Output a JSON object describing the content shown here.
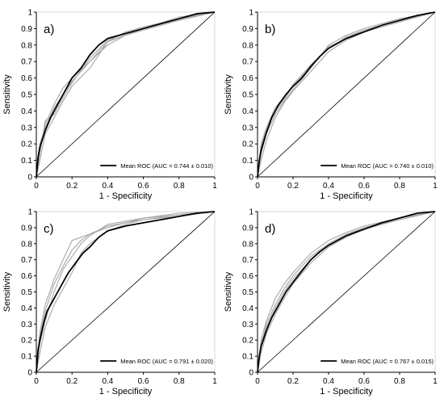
{
  "figure": {
    "axis_color": "#000000",
    "reference_color": "#000000",
    "mean_color": "#000000",
    "fold_color": "#a6a6a6"
  },
  "chart_data": [
    {
      "type": "line",
      "panel_label": "a)",
      "xlabel": "1 - Specificity",
      "ylabel": "Sensitivity",
      "xlim": [
        0,
        1
      ],
      "ylim": [
        0,
        1
      ],
      "xticks": [
        "0",
        "0.2",
        "0.4",
        "0.6",
        "0.8",
        "1"
      ],
      "yticks": [
        "0",
        "0.1",
        "0.2",
        "0.3",
        "0.4",
        "0.5",
        "0.6",
        "0.7",
        "0.8",
        "0.9",
        "1"
      ],
      "legend": {
        "label": "Mean ROC (AUC = 0.744 ± 0.010)",
        "position": "bottom-right"
      },
      "series": [
        {
          "name": "Mean ROC",
          "role": "mean",
          "x": [
            0,
            0.01,
            0.02,
            0.05,
            0.08,
            0.12,
            0.16,
            0.2,
            0.25,
            0.3,
            0.35,
            0.4,
            0.5,
            0.6,
            0.7,
            0.8,
            0.9,
            1
          ],
          "y": [
            0,
            0.12,
            0.18,
            0.28,
            0.36,
            0.44,
            0.52,
            0.6,
            0.66,
            0.74,
            0.8,
            0.84,
            0.87,
            0.9,
            0.93,
            0.96,
            0.99,
            1
          ]
        },
        {
          "role": "fold",
          "x": [
            0,
            0.02,
            0.05,
            0.1,
            0.15,
            0.2,
            0.3,
            0.4,
            0.5,
            0.6,
            0.8,
            1
          ],
          "y": [
            0,
            0.2,
            0.3,
            0.42,
            0.5,
            0.58,
            0.7,
            0.82,
            0.88,
            0.91,
            0.96,
            1
          ]
        },
        {
          "role": "fold",
          "x": [
            0,
            0.02,
            0.05,
            0.1,
            0.15,
            0.2,
            0.3,
            0.4,
            0.5,
            0.6,
            0.8,
            1
          ],
          "y": [
            0,
            0.16,
            0.32,
            0.44,
            0.54,
            0.6,
            0.7,
            0.8,
            0.86,
            0.9,
            0.96,
            1
          ]
        },
        {
          "role": "fold",
          "x": [
            0,
            0.02,
            0.05,
            0.1,
            0.15,
            0.2,
            0.3,
            0.4,
            0.5,
            0.6,
            0.8,
            1
          ],
          "y": [
            0,
            0.1,
            0.26,
            0.36,
            0.46,
            0.55,
            0.66,
            0.82,
            0.86,
            0.89,
            0.95,
            1
          ]
        },
        {
          "role": "fold",
          "x": [
            0,
            0.02,
            0.05,
            0.1,
            0.15,
            0.2,
            0.3,
            0.4,
            0.5,
            0.6,
            0.8,
            1
          ],
          "y": [
            0,
            0.14,
            0.34,
            0.38,
            0.48,
            0.57,
            0.72,
            0.83,
            0.87,
            0.9,
            0.97,
            1
          ]
        }
      ]
    },
    {
      "type": "line",
      "panel_label": "b)",
      "xlabel": "1 - Specificity",
      "ylabel": "Sensitivity",
      "xlim": [
        0,
        1
      ],
      "ylim": [
        0,
        1
      ],
      "xticks": [
        "0",
        "0.2",
        "0.4",
        "0.6",
        "0.8",
        "1"
      ],
      "yticks": [
        "0",
        "0.1",
        "0.2",
        "0.3",
        "0.4",
        "0.5",
        "0.6",
        "0.7",
        "0.8",
        "0.9",
        "1"
      ],
      "legend": {
        "label": "Mean ROC (AUC = 0.740 ± 0.010)",
        "position": "bottom-right"
      },
      "series": [
        {
          "name": "Mean ROC",
          "role": "mean",
          "x": [
            0,
            0.01,
            0.02,
            0.05,
            0.08,
            0.12,
            0.16,
            0.2,
            0.25,
            0.3,
            0.35,
            0.4,
            0.5,
            0.6,
            0.7,
            0.8,
            0.9,
            1
          ],
          "y": [
            0,
            0.1,
            0.16,
            0.27,
            0.36,
            0.44,
            0.5,
            0.55,
            0.6,
            0.67,
            0.73,
            0.78,
            0.84,
            0.88,
            0.92,
            0.95,
            0.98,
            1
          ]
        },
        {
          "role": "fold",
          "x": [
            0,
            0.02,
            0.05,
            0.1,
            0.15,
            0.2,
            0.3,
            0.4,
            0.5,
            0.6,
            0.8,
            1
          ],
          "y": [
            0,
            0.2,
            0.3,
            0.42,
            0.48,
            0.56,
            0.68,
            0.78,
            0.85,
            0.89,
            0.95,
            1
          ]
        },
        {
          "role": "fold",
          "x": [
            0,
            0.02,
            0.05,
            0.1,
            0.15,
            0.2,
            0.3,
            0.4,
            0.5,
            0.6,
            0.8,
            1
          ],
          "y": [
            0,
            0.14,
            0.26,
            0.38,
            0.46,
            0.53,
            0.66,
            0.8,
            0.86,
            0.9,
            0.96,
            1
          ]
        },
        {
          "role": "fold",
          "x": [
            0,
            0.02,
            0.05,
            0.1,
            0.15,
            0.2,
            0.3,
            0.4,
            0.5,
            0.6,
            0.8,
            1
          ],
          "y": [
            0,
            0.1,
            0.22,
            0.36,
            0.45,
            0.52,
            0.64,
            0.76,
            0.83,
            0.88,
            0.94,
            1
          ]
        },
        {
          "role": "fold",
          "x": [
            0,
            0.02,
            0.05,
            0.1,
            0.15,
            0.2,
            0.3,
            0.4,
            0.5,
            0.6,
            0.8,
            1
          ],
          "y": [
            0,
            0.18,
            0.28,
            0.4,
            0.47,
            0.55,
            0.67,
            0.79,
            0.84,
            0.89,
            0.95,
            1
          ]
        }
      ]
    },
    {
      "type": "line",
      "panel_label": "c)",
      "xlabel": "1 - Specificity",
      "ylabel": "Sensitivity",
      "xlim": [
        0,
        1
      ],
      "ylim": [
        0,
        1
      ],
      "xticks": [
        "0",
        "0.2",
        "0.4",
        "0.6",
        "0.8",
        "1"
      ],
      "yticks": [
        "0",
        "0.1",
        "0.2",
        "0.3",
        "0.4",
        "0.5",
        "0.6",
        "0.7",
        "0.8",
        "0.9",
        "1"
      ],
      "legend": {
        "label": "Mean ROC (AUC = 0.791 ± 0.020)",
        "position": "bottom-right"
      },
      "series": [
        {
          "name": "Mean ROC",
          "role": "mean",
          "x": [
            0,
            0.01,
            0.02,
            0.04,
            0.06,
            0.1,
            0.14,
            0.18,
            0.22,
            0.26,
            0.3,
            0.35,
            0.4,
            0.5,
            0.6,
            0.7,
            0.8,
            0.9,
            1
          ],
          "y": [
            0,
            0.14,
            0.2,
            0.3,
            0.38,
            0.46,
            0.54,
            0.62,
            0.68,
            0.74,
            0.78,
            0.84,
            0.88,
            0.91,
            0.93,
            0.95,
            0.97,
            0.99,
            1
          ]
        },
        {
          "role": "fold",
          "x": [
            0,
            0.02,
            0.05,
            0.1,
            0.15,
            0.2,
            0.25,
            0.3,
            0.4,
            0.5,
            0.6,
            0.8,
            1
          ],
          "y": [
            0,
            0.25,
            0.42,
            0.58,
            0.7,
            0.82,
            0.84,
            0.86,
            0.9,
            0.93,
            0.95,
            0.97,
            1
          ]
        },
        {
          "role": "fold",
          "x": [
            0,
            0.02,
            0.05,
            0.1,
            0.15,
            0.2,
            0.25,
            0.3,
            0.4,
            0.5,
            0.6,
            0.8,
            1
          ],
          "y": [
            0,
            0.18,
            0.32,
            0.5,
            0.64,
            0.72,
            0.8,
            0.85,
            0.92,
            0.94,
            0.96,
            0.99,
            1
          ]
        },
        {
          "role": "fold",
          "x": [
            0,
            0.02,
            0.05,
            0.1,
            0.15,
            0.2,
            0.25,
            0.3,
            0.4,
            0.5,
            0.6,
            0.8,
            1
          ],
          "y": [
            0,
            0.12,
            0.28,
            0.42,
            0.52,
            0.62,
            0.74,
            0.8,
            0.88,
            0.92,
            0.95,
            0.98,
            1
          ]
        },
        {
          "role": "fold",
          "x": [
            0,
            0.02,
            0.05,
            0.1,
            0.15,
            0.2,
            0.25,
            0.3,
            0.4,
            0.5,
            0.6,
            0.8,
            1
          ],
          "y": [
            0,
            0.22,
            0.38,
            0.55,
            0.66,
            0.76,
            0.82,
            0.86,
            0.91,
            0.93,
            0.96,
            0.98,
            1
          ]
        }
      ]
    },
    {
      "type": "line",
      "panel_label": "d)",
      "xlabel": "1 - Specificity",
      "ylabel": "Sensitivity",
      "xlim": [
        0,
        1
      ],
      "ylim": [
        0,
        1
      ],
      "xticks": [
        "0",
        "0.2",
        "0.4",
        "0.6",
        "0.8",
        "1"
      ],
      "yticks": [
        "0",
        "0.1",
        "0.2",
        "0.3",
        "0.4",
        "0.5",
        "0.6",
        "0.7",
        "0.8",
        "0.9",
        "1"
      ],
      "legend": {
        "label": "Mean ROC (AUC = 0.767 ± 0.015)",
        "position": "bottom-right"
      },
      "series": [
        {
          "name": "Mean ROC",
          "role": "mean",
          "x": [
            0,
            0.01,
            0.02,
            0.05,
            0.08,
            0.12,
            0.16,
            0.2,
            0.25,
            0.3,
            0.35,
            0.4,
            0.45,
            0.5,
            0.6,
            0.7,
            0.8,
            0.9,
            1
          ],
          "y": [
            0,
            0.1,
            0.16,
            0.26,
            0.34,
            0.42,
            0.5,
            0.56,
            0.63,
            0.7,
            0.75,
            0.79,
            0.82,
            0.85,
            0.89,
            0.93,
            0.96,
            0.99,
            1
          ]
        },
        {
          "role": "fold",
          "x": [
            0,
            0.02,
            0.05,
            0.1,
            0.15,
            0.2,
            0.3,
            0.4,
            0.5,
            0.6,
            0.8,
            1
          ],
          "y": [
            0,
            0.2,
            0.32,
            0.46,
            0.55,
            0.62,
            0.74,
            0.82,
            0.87,
            0.91,
            0.96,
            1
          ]
        },
        {
          "role": "fold",
          "x": [
            0,
            0.02,
            0.05,
            0.1,
            0.15,
            0.2,
            0.3,
            0.4,
            0.5,
            0.6,
            0.8,
            1
          ],
          "y": [
            0,
            0.16,
            0.3,
            0.42,
            0.52,
            0.6,
            0.72,
            0.8,
            0.86,
            0.9,
            0.96,
            1
          ]
        },
        {
          "role": "fold",
          "x": [
            0,
            0.02,
            0.05,
            0.1,
            0.15,
            0.2,
            0.3,
            0.4,
            0.5,
            0.6,
            0.8,
            1
          ],
          "y": [
            0,
            0.12,
            0.24,
            0.36,
            0.46,
            0.55,
            0.68,
            0.78,
            0.84,
            0.89,
            0.95,
            1
          ]
        },
        {
          "role": "fold",
          "x": [
            0,
            0.02,
            0.05,
            0.1,
            0.15,
            0.2,
            0.3,
            0.4,
            0.5,
            0.6,
            0.8,
            1
          ],
          "y": [
            0,
            0.18,
            0.28,
            0.4,
            0.5,
            0.58,
            0.7,
            0.79,
            0.85,
            0.9,
            0.95,
            1
          ]
        }
      ]
    }
  ]
}
